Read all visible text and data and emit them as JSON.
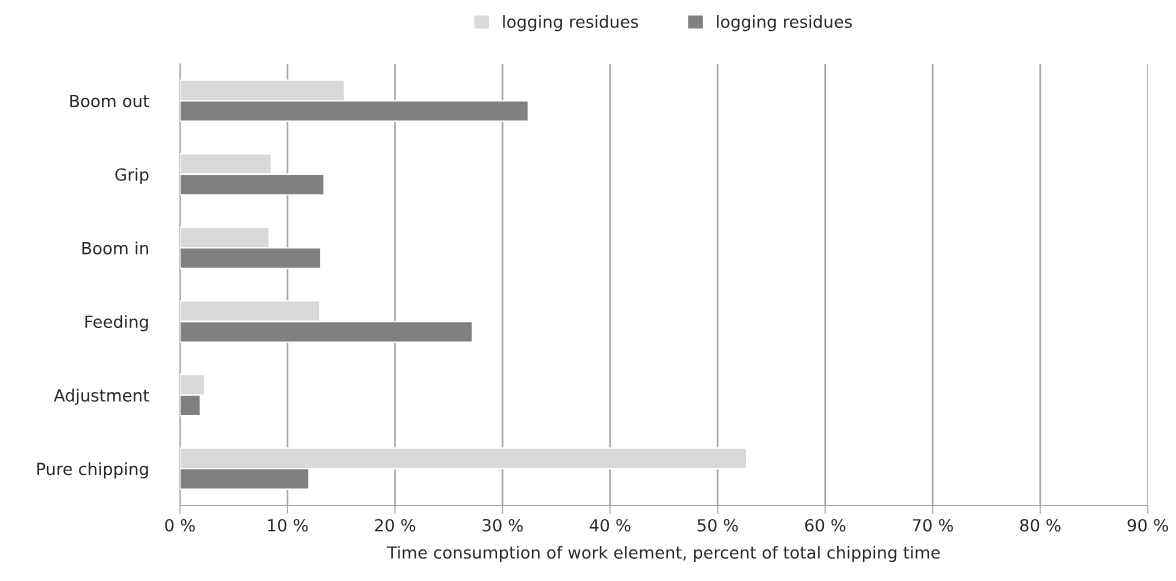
{
  "chart_data": {
    "type": "bar",
    "orientation": "horizontal",
    "xlabel": "Time consumption of work element, percent of total chipping time",
    "categories": [
      "Boom out",
      "Grip",
      "Boom in",
      "Feeding",
      "Adjustment",
      "Pure chipping"
    ],
    "series": [
      {
        "name": "logging residues",
        "color": "#d9d9d9",
        "values": [
          15.3,
          8.5,
          8.3,
          13.0,
          2.3,
          52.7
        ]
      },
      {
        "name": "logging residues",
        "color": "#808080",
        "values": [
          32.4,
          13.4,
          13.1,
          27.2,
          1.9,
          12.0
        ]
      }
    ],
    "xlim": [
      0,
      90
    ],
    "xticks": [
      {
        "value": 0,
        "label": "0 %"
      },
      {
        "value": 10,
        "label": "10 %"
      },
      {
        "value": 20,
        "label": "20 %"
      },
      {
        "value": 30,
        "label": "30 %"
      },
      {
        "value": 40,
        "label": "40 %"
      },
      {
        "value": 50,
        "label": "50 %"
      },
      {
        "value": 60,
        "label": "60 %"
      },
      {
        "value": 70,
        "label": "70 %"
      },
      {
        "value": 80,
        "label": "80 %"
      },
      {
        "value": 90,
        "label": "90 %"
      }
    ],
    "grid": "x",
    "legend": "top"
  }
}
